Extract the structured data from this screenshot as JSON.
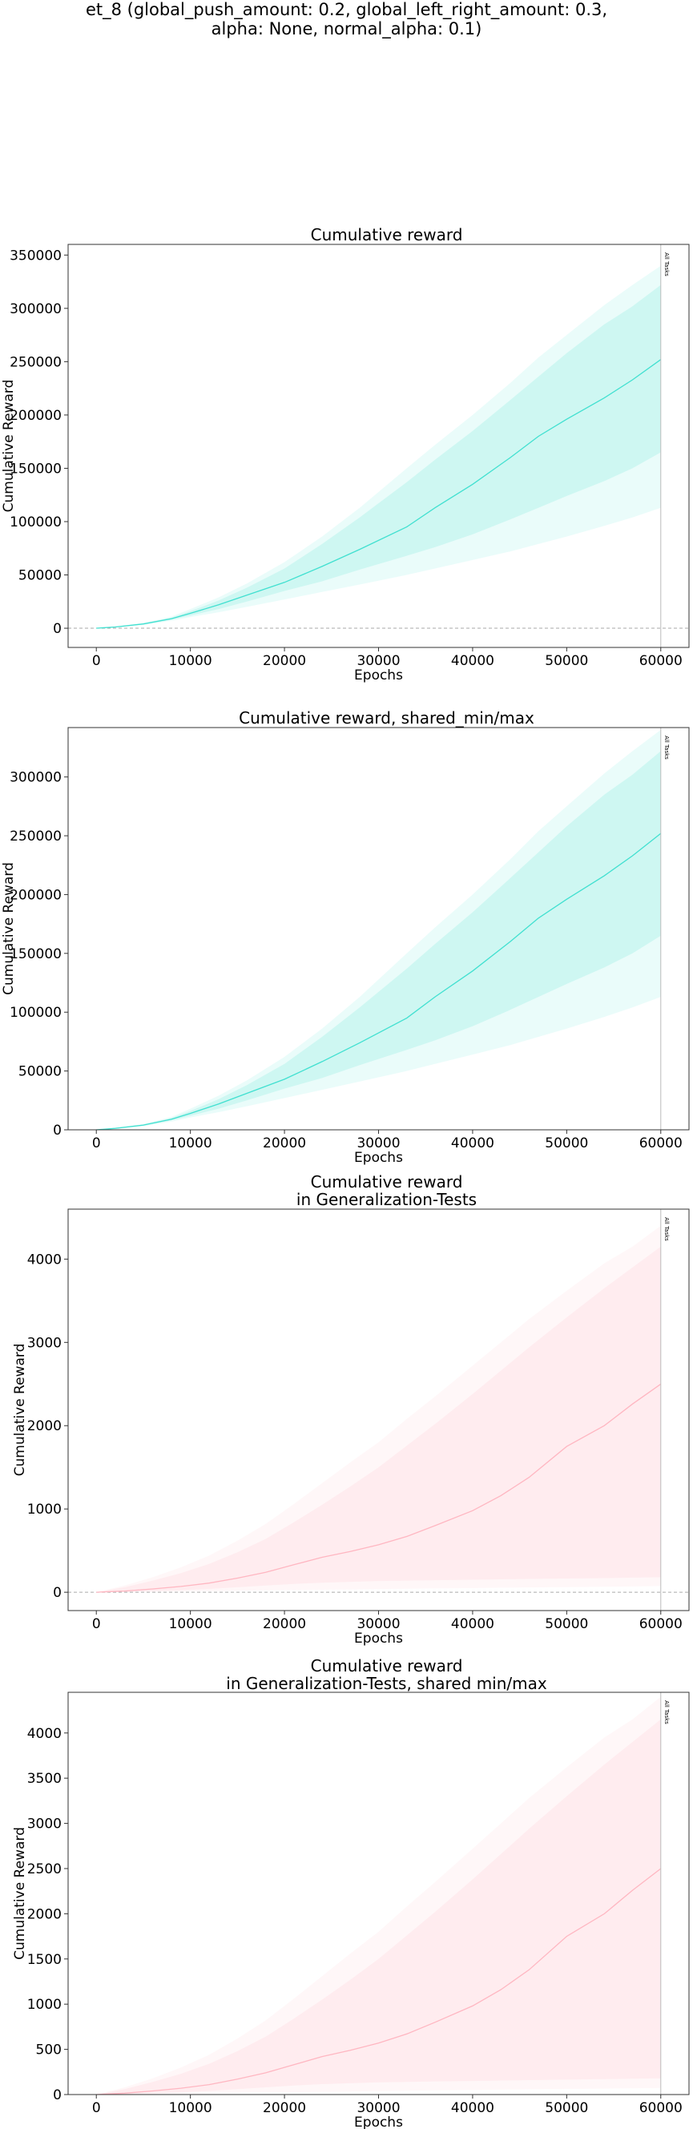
{
  "figure": {
    "suptitle_lines": [
      "et_8 (global_push_amount: 0.2, global_left_right_amount: 0.3,",
      "alpha: None, normal_alpha: 0.1)"
    ]
  },
  "chart_data": [
    {
      "type": "area",
      "title_lines": [
        "Cumulative reward"
      ],
      "xlabel": "Epochs",
      "ylabel": "Cumulative Reward",
      "xlim": [
        -3000,
        63000
      ],
      "ylim": [
        -18000,
        360000
      ],
      "xticks": [
        0,
        10000,
        20000,
        30000,
        40000,
        50000,
        60000
      ],
      "yticks": [
        0,
        50000,
        100000,
        150000,
        200000,
        250000,
        300000,
        350000
      ],
      "grid": false,
      "zero_line": true,
      "color": "#40e0d0",
      "vline": {
        "x": 60000,
        "label": "All Tasks"
      },
      "x": [
        0,
        2000,
        5000,
        8000,
        10000,
        13000,
        16000,
        20000,
        24000,
        28000,
        33000,
        36000,
        40000,
        44000,
        47000,
        50000,
        54000,
        57000,
        60000
      ],
      "mean": [
        0,
        1200,
        4000,
        9000,
        14000,
        22000,
        31000,
        43000,
        58000,
        74000,
        95000,
        113000,
        135000,
        160000,
        180000,
        196000,
        216000,
        233000,
        252000
      ],
      "band_inner": {
        "lower": [
          0,
          1000,
          3500,
          8000,
          12000,
          18000,
          25000,
          35000,
          44000,
          55000,
          68000,
          76000,
          88000,
          102000,
          113000,
          124000,
          138000,
          150000,
          165000
        ],
        "upper": [
          0,
          1400,
          4500,
          10000,
          16000,
          26000,
          38000,
          56000,
          79000,
          104000,
          137000,
          158000,
          185000,
          214000,
          236000,
          258000,
          285000,
          302000,
          322000
        ]
      },
      "band_outer": {
        "lower": [
          0,
          800,
          3000,
          7000,
          10500,
          15000,
          20000,
          27000,
          34000,
          41000,
          50000,
          56000,
          64000,
          72000,
          79000,
          86000,
          96000,
          104000,
          113000
        ],
        "upper": [
          0,
          1600,
          5000,
          11000,
          18000,
          29000,
          42000,
          62000,
          86000,
          113000,
          150000,
          172000,
          200000,
          230000,
          254000,
          275000,
          303000,
          322000,
          340000
        ]
      }
    },
    {
      "type": "area",
      "title_lines": [
        "Cumulative reward, shared_min/max"
      ],
      "xlabel": "Epochs",
      "ylabel": "Cumulative Reward",
      "xlim": [
        -3000,
        63000
      ],
      "ylim": [
        0,
        342000
      ],
      "xticks": [
        0,
        10000,
        20000,
        30000,
        40000,
        50000,
        60000
      ],
      "yticks": [
        0,
        50000,
        100000,
        150000,
        200000,
        250000,
        300000
      ],
      "grid": false,
      "zero_line": false,
      "color": "#40e0d0",
      "vline": {
        "x": 60000,
        "label": "All Tasks"
      },
      "x": [
        0,
        2000,
        5000,
        8000,
        10000,
        13000,
        16000,
        20000,
        24000,
        28000,
        33000,
        36000,
        40000,
        44000,
        47000,
        50000,
        54000,
        57000,
        60000
      ],
      "mean": [
        0,
        1200,
        4000,
        9000,
        14000,
        22000,
        31000,
        43000,
        58000,
        74000,
        95000,
        113000,
        135000,
        160000,
        180000,
        196000,
        216000,
        233000,
        252000
      ],
      "band_inner": {
        "lower": [
          0,
          1000,
          3500,
          8000,
          12000,
          18000,
          25000,
          35000,
          44000,
          55000,
          68000,
          76000,
          88000,
          102000,
          113000,
          124000,
          138000,
          150000,
          165000
        ],
        "upper": [
          0,
          1400,
          4500,
          10000,
          16000,
          26000,
          38000,
          56000,
          79000,
          104000,
          137000,
          158000,
          185000,
          214000,
          236000,
          258000,
          285000,
          302000,
          322000
        ]
      },
      "band_outer": {
        "lower": [
          0,
          800,
          3000,
          7000,
          10500,
          15000,
          20000,
          27000,
          34000,
          41000,
          50000,
          56000,
          64000,
          72000,
          79000,
          86000,
          96000,
          104000,
          113000
        ],
        "upper": [
          0,
          1600,
          5000,
          11000,
          18000,
          29000,
          42000,
          62000,
          86000,
          113000,
          150000,
          172000,
          200000,
          230000,
          254000,
          275000,
          303000,
          322000,
          340000
        ]
      }
    },
    {
      "type": "area",
      "title_lines": [
        "Cumulative reward",
        "in Generalization-Tests"
      ],
      "xlabel": "Epochs",
      "ylabel": "Cumulative Reward",
      "xlim": [
        -3000,
        63000
      ],
      "ylim": [
        -220,
        4600
      ],
      "xticks": [
        0,
        10000,
        20000,
        30000,
        40000,
        50000,
        60000
      ],
      "yticks": [
        0,
        1000,
        2000,
        3000,
        4000
      ],
      "grid": false,
      "zero_line": true,
      "color": "#ffb6c1",
      "vline": {
        "x": 60000,
        "label": "All Tasks"
      },
      "x": [
        0,
        3000,
        6000,
        9000,
        12000,
        15000,
        18000,
        21000,
        24000,
        27000,
        30000,
        33000,
        36000,
        40000,
        43000,
        46000,
        50000,
        54000,
        57000,
        60000
      ],
      "mean": [
        0,
        15,
        40,
        70,
        110,
        170,
        240,
        330,
        420,
        490,
        570,
        670,
        800,
        980,
        1160,
        1380,
        1750,
        2000,
        2260,
        2500
      ],
      "band_inner": {
        "lower": [
          0,
          5,
          15,
          25,
          40,
          60,
          80,
          100,
          115,
          125,
          135,
          140,
          145,
          150,
          155,
          160,
          165,
          170,
          175,
          180
        ],
        "upper": [
          0,
          60,
          140,
          230,
          340,
          480,
          640,
          840,
          1050,
          1270,
          1500,
          1760,
          2020,
          2380,
          2660,
          2940,
          3300,
          3650,
          3900,
          4150
        ]
      },
      "band_outer": {
        "lower": [
          0,
          2,
          6,
          10,
          14,
          18,
          22,
          26,
          30,
          34,
          38,
          42,
          46,
          50,
          54,
          58,
          62,
          66,
          70,
          74
        ],
        "upper": [
          0,
          80,
          180,
          300,
          440,
          620,
          820,
          1060,
          1310,
          1560,
          1800,
          2080,
          2350,
          2720,
          3000,
          3280,
          3620,
          3950,
          4150,
          4400
        ]
      }
    },
    {
      "type": "area",
      "title_lines": [
        "Cumulative reward",
        "in Generalization-Tests, shared min/max"
      ],
      "xlabel": "Epochs",
      "ylabel": "Cumulative Reward",
      "xlim": [
        -3000,
        63000
      ],
      "ylim": [
        0,
        4450
      ],
      "xticks": [
        0,
        10000,
        20000,
        30000,
        40000,
        50000,
        60000
      ],
      "yticks": [
        0,
        500,
        1000,
        1500,
        2000,
        2500,
        3000,
        3500,
        4000
      ],
      "grid": false,
      "zero_line": false,
      "color": "#ffb6c1",
      "vline": {
        "x": 60000,
        "label": "All Tasks"
      },
      "x": [
        0,
        3000,
        6000,
        9000,
        12000,
        15000,
        18000,
        21000,
        24000,
        27000,
        30000,
        33000,
        36000,
        40000,
        43000,
        46000,
        50000,
        54000,
        57000,
        60000
      ],
      "mean": [
        0,
        15,
        40,
        70,
        110,
        170,
        240,
        330,
        420,
        490,
        570,
        670,
        800,
        980,
        1160,
        1380,
        1750,
        2000,
        2260,
        2500
      ],
      "band_inner": {
        "lower": [
          0,
          5,
          15,
          25,
          40,
          60,
          80,
          100,
          115,
          125,
          135,
          140,
          145,
          150,
          155,
          160,
          165,
          170,
          175,
          180
        ],
        "upper": [
          0,
          60,
          140,
          230,
          340,
          480,
          640,
          840,
          1050,
          1270,
          1500,
          1760,
          2020,
          2380,
          2660,
          2940,
          3300,
          3650,
          3900,
          4150
        ]
      },
      "band_outer": {
        "lower": [
          0,
          2,
          6,
          10,
          14,
          18,
          22,
          26,
          30,
          34,
          38,
          42,
          46,
          50,
          54,
          58,
          62,
          66,
          70,
          74
        ],
        "upper": [
          0,
          80,
          180,
          300,
          440,
          620,
          820,
          1060,
          1310,
          1560,
          1800,
          2080,
          2350,
          2720,
          3000,
          3280,
          3620,
          3950,
          4150,
          4400
        ]
      }
    }
  ]
}
